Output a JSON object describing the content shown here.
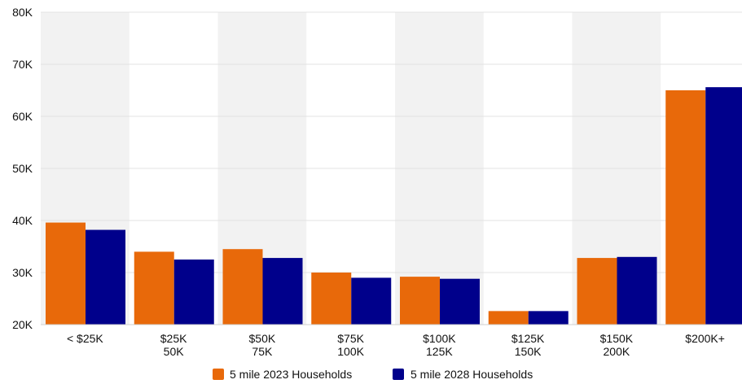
{
  "chart_data": {
    "type": "bar",
    "title": "",
    "xlabel": "",
    "ylabel": "",
    "categories": [
      [
        "< $25K"
      ],
      [
        "$25K",
        "50K"
      ],
      [
        "$50K",
        "75K"
      ],
      [
        "$75K",
        "100K"
      ],
      [
        "$100K",
        "125K"
      ],
      [
        "$125K",
        "150K"
      ],
      [
        "$150K",
        "200K"
      ],
      [
        "$200K+"
      ]
    ],
    "ylim": [
      20000,
      80000
    ],
    "yticks": [
      {
        "value": 20000,
        "label": "20K"
      },
      {
        "value": 30000,
        "label": "30K"
      },
      {
        "value": 40000,
        "label": "40K"
      },
      {
        "value": 50000,
        "label": "50K"
      },
      {
        "value": 60000,
        "label": "60K"
      },
      {
        "value": 70000,
        "label": "70K"
      },
      {
        "value": 80000,
        "label": "80K"
      }
    ],
    "series": [
      {
        "name": "5 mile 2023 Households",
        "color": "#E8690A",
        "values": [
          39600,
          34000,
          34500,
          30000,
          29200,
          22600,
          32800,
          65000
        ]
      },
      {
        "name": "5 mile 2028 Households",
        "color": "#00008B",
        "values": [
          38200,
          32500,
          32800,
          29000,
          28800,
          22600,
          33000,
          65600
        ]
      }
    ],
    "grid": true,
    "band_color": "#f2f2f2",
    "legend_position": "bottom"
  }
}
